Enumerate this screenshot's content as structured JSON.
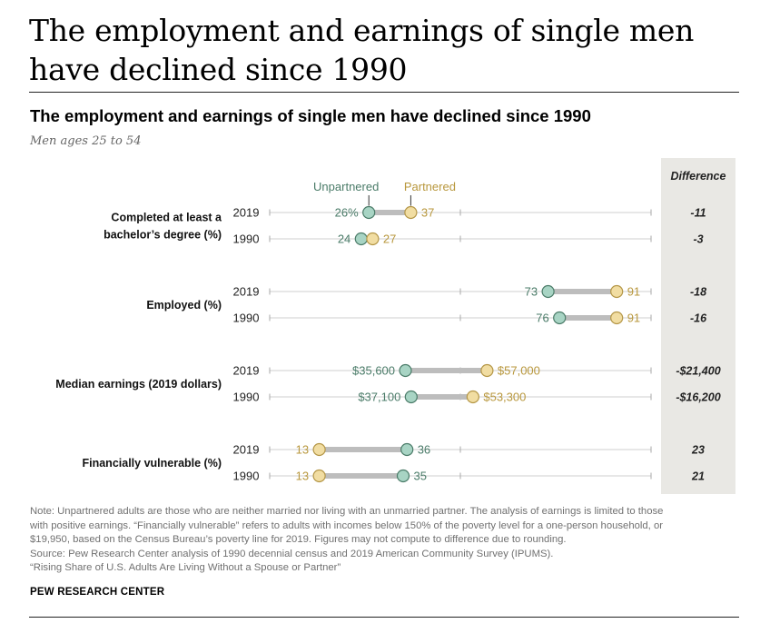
{
  "headline": "The employment and earnings of single men have declined since 1990",
  "chart_title": "The employment and earnings of single men have declined since 1990",
  "subtitle": "Men ages 25 to 54",
  "notes": [
    "Note: Unpartnered adults are those who are neither married nor living with an unmarried partner. The analysis of earnings is limited to those",
    "with positive earnings. “Financially vulnerable” refers to adults with incomes below 150% of the poverty level for a one-person household, or",
    "$19,950, based on the Census Bureau’s poverty line for 2019. Figures may not compute to difference due to rounding.",
    "Source: Pew Research Center analysis of 1990 decennial census and 2019 American Community Survey (IPUMS).",
    "“Rising Share of U.S. Adults Are Living Without a Spouse or Partner”"
  ],
  "brand": "PEW RESEARCH CENTER",
  "colors": {
    "unpartnered": "#a8d4c4",
    "unpartnered_stroke": "#4a7b68",
    "unpartnered_text": "#4a7b68",
    "partnered": "#f1dda2",
    "partnered_stroke": "#b49646",
    "partnered_text": "#b8973c",
    "bar": "#bdbdbd",
    "axis": "#cfcfcf",
    "difference_bg": "#e9e8e4"
  },
  "chart_data": {
    "type": "dumbbell",
    "legend": {
      "unpartnered": "Unpartnered",
      "partnered": "Partnered",
      "placement": "top"
    },
    "difference_header": "Difference",
    "groups": [
      {
        "label_lines": [
          "Completed at least a",
          "bachelor’s degree (%)"
        ],
        "scale": [
          0,
          100
        ],
        "rows": [
          {
            "year": "2019",
            "unpartnered": 26,
            "partnered": 37,
            "unpartnered_label": "26%",
            "partnered_label": "37",
            "difference": "-11"
          },
          {
            "year": "1990",
            "unpartnered": 24,
            "partnered": 27,
            "unpartnered_label": "24",
            "partnered_label": "27",
            "difference": "-3"
          }
        ]
      },
      {
        "label_lines": [
          "Employed (%)"
        ],
        "scale": [
          0,
          100
        ],
        "rows": [
          {
            "year": "2019",
            "unpartnered": 73,
            "partnered": 91,
            "unpartnered_label": "73",
            "partnered_label": "91",
            "difference": "-18"
          },
          {
            "year": "1990",
            "unpartnered": 76,
            "partnered": 91,
            "unpartnered_label": "76",
            "partnered_label": "91",
            "difference": "-16"
          }
        ]
      },
      {
        "label_lines": [
          "Median earnings (2019 dollars)"
        ],
        "scale": [
          0,
          100000
        ],
        "rows": [
          {
            "year": "2019",
            "unpartnered": 35600,
            "partnered": 57000,
            "unpartnered_label": "$35,600",
            "partnered_label": "$57,000",
            "difference": "-$21,400"
          },
          {
            "year": "1990",
            "unpartnered": 37100,
            "partnered": 53300,
            "unpartnered_label": "$37,100",
            "partnered_label": "$53,300",
            "difference": "-$16,200"
          }
        ]
      },
      {
        "label_lines": [
          "Financially vulnerable (%)"
        ],
        "scale": [
          0,
          100
        ],
        "rows": [
          {
            "year": "2019",
            "unpartnered": 36,
            "partnered": 13,
            "unpartnered_label": "36",
            "partnered_label": "13",
            "difference": "23"
          },
          {
            "year": "1990",
            "unpartnered": 35,
            "partnered": 13,
            "unpartnered_label": "35",
            "partnered_label": "13",
            "difference": "21"
          }
        ]
      }
    ]
  }
}
